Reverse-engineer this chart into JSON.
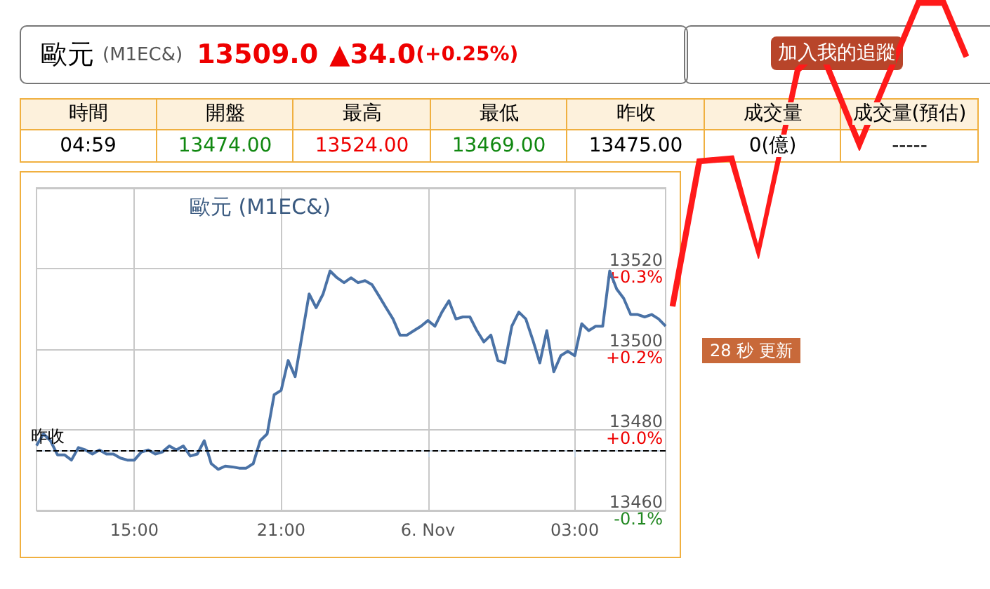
{
  "chart_data": {
    "type": "line",
    "title": "歐元 (M1EC&)",
    "categories": [
      null,
      null,
      null,
      null,
      null,
      null,
      null,
      null,
      null,
      null,
      null,
      null,
      null,
      null,
      "15:00",
      null,
      null,
      null,
      null,
      null,
      null,
      null,
      null,
      null,
      null,
      null,
      null,
      null,
      null,
      null,
      null,
      null,
      null,
      null,
      null,
      "21:00",
      null,
      null,
      null,
      null,
      null,
      null,
      null,
      null,
      null,
      null,
      null,
      null,
      null,
      null,
      null,
      null,
      null,
      null,
      null,
      null,
      "6. Nov",
      null,
      null,
      null,
      null,
      null,
      null,
      null,
      null,
      null,
      null,
      null,
      null,
      null,
      null,
      null,
      null,
      null,
      null,
      null,
      null,
      "03:00",
      null,
      null,
      null,
      null,
      null,
      null,
      null,
      null,
      null,
      null,
      null,
      null,
      null
    ],
    "series": [
      {
        "color": "#4a72a6",
        "values": [
          13476.1,
          13479,
          13477.3,
          13473.8,
          13473.8,
          13472.5,
          13475.6,
          13475,
          13474,
          13475,
          13474,
          13474,
          13473,
          13472.5,
          13472.5,
          13474.5,
          13475,
          13474,
          13474.5,
          13476,
          13475,
          13476,
          13473.5,
          13474,
          13477.3,
          13471.6,
          13470.2,
          13471,
          13470.8,
          13470.5,
          13470.5,
          13471.6,
          13477.3,
          13479,
          13488.7,
          13489.8,
          13497.2,
          13493.2,
          13503.5,
          13513.7,
          13510.3,
          13513.7,
          13519.4,
          13517.7,
          13516.5,
          13517.7,
          13516.5,
          13517,
          13516,
          13513.2,
          13510.3,
          13507.5,
          13503.5,
          13503.5,
          13504.6,
          13505.7,
          13507.1,
          13505.7,
          13509.2,
          13512,
          13507.5,
          13508,
          13508,
          13504.6,
          13501.8,
          13503.5,
          13497.2,
          13496.6,
          13505.7,
          13509.2,
          13507.5,
          13502.3,
          13496.6,
          13504.6,
          13494.4,
          13498.4,
          13499.5,
          13498.4,
          13506.3,
          13504.6,
          13505.7,
          13505.7,
          13519.4,
          13514.9,
          13512.6,
          13508.6,
          13508.6,
          13508,
          13508.6,
          13507.5,
          13505.7
        ]
      }
    ],
    "ylim": [
      13460,
      13540
    ],
    "yticks": [
      13460,
      13480,
      13500,
      13520
    ],
    "y2lim": [
      -0.111,
      0.482
    ],
    "y2ticks": [
      {
        "value": -0.111,
        "label": "-0.1%"
      },
      {
        "value": 0.037,
        "label": "+0.0%"
      },
      {
        "value": 0.186,
        "label": "+0.2%"
      },
      {
        "value": 0.334,
        "label": "+0.3%"
      }
    ],
    "ref_lines": [
      {
        "axis": "y",
        "value": 13475,
        "label": "昨收",
        "color": "#000000",
        "line_style": "dashed"
      }
    ],
    "grid": true,
    "annotations": [
      "歐元",
      "(M1EC&)",
      "13509.0",
      "▲34.0",
      "(+0.25%)",
      "加入我的追蹤",
      "時間",
      "開盤",
      "最高",
      "最低",
      "昨收",
      "成交量",
      "成交量(預估)",
      "04:59",
      "13474.00",
      "13524.00",
      "13469.00",
      "13475.00",
      "0(億)",
      "-----",
      "28 秒 更新"
    ]
  }
}
